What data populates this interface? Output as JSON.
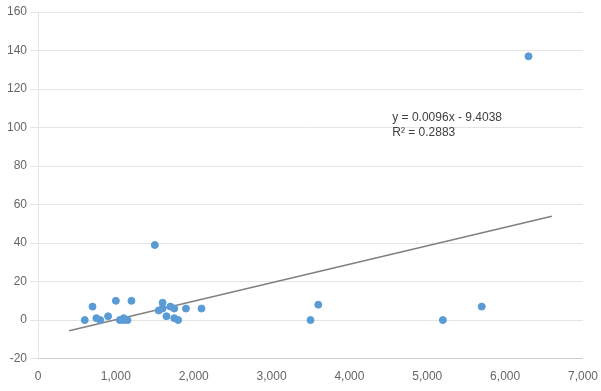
{
  "chart_data": {
    "type": "scatter",
    "series": [
      {
        "type": "scatter",
        "color": "#5B9BD5",
        "marker": "circle",
        "x": [
          600,
          700,
          750,
          800,
          900,
          1000,
          1050,
          1100,
          1100,
          1150,
          1200,
          1500,
          1550,
          1600,
          1600,
          1650,
          1700,
          1750,
          1750,
          1800,
          1900,
          2100,
          3500,
          3600,
          5200,
          5700,
          6300
        ],
        "values": [
          0,
          7,
          1,
          0,
          2,
          10,
          0,
          1,
          0,
          0,
          10,
          39,
          5,
          9,
          6,
          2,
          7,
          6,
          1,
          0,
          6,
          6,
          0,
          8,
          0,
          7,
          137
        ]
      },
      {
        "type": "line",
        "color": "#808080",
        "line_style": "solid",
        "x": [
          400,
          6600
        ],
        "values": [
          -5.5638,
          53.9562
        ]
      }
    ],
    "annotations": [
      {
        "text": [
          "y = 0.0096x - 9.4038",
          "R² = 0.2883"
        ],
        "x": 4550,
        "y": 108
      }
    ],
    "xlim": [
      0,
      7000
    ],
    "ylim": [
      -20,
      160
    ],
    "xticks": [
      0,
      {
        "value": 1000,
        "label": "1,000"
      },
      {
        "value": 2000,
        "label": "2,000"
      },
      {
        "value": 3000,
        "label": "3,000"
      },
      {
        "value": 4000,
        "label": "4,000"
      },
      {
        "value": 5000,
        "label": "5,000"
      },
      {
        "value": 6000,
        "label": "6,000"
      },
      {
        "value": 7000,
        "label": "7,000"
      }
    ],
    "yticks": [
      -20,
      0,
      20,
      40,
      60,
      80,
      100,
      120,
      140,
      160
    ],
    "grid": "y"
  }
}
